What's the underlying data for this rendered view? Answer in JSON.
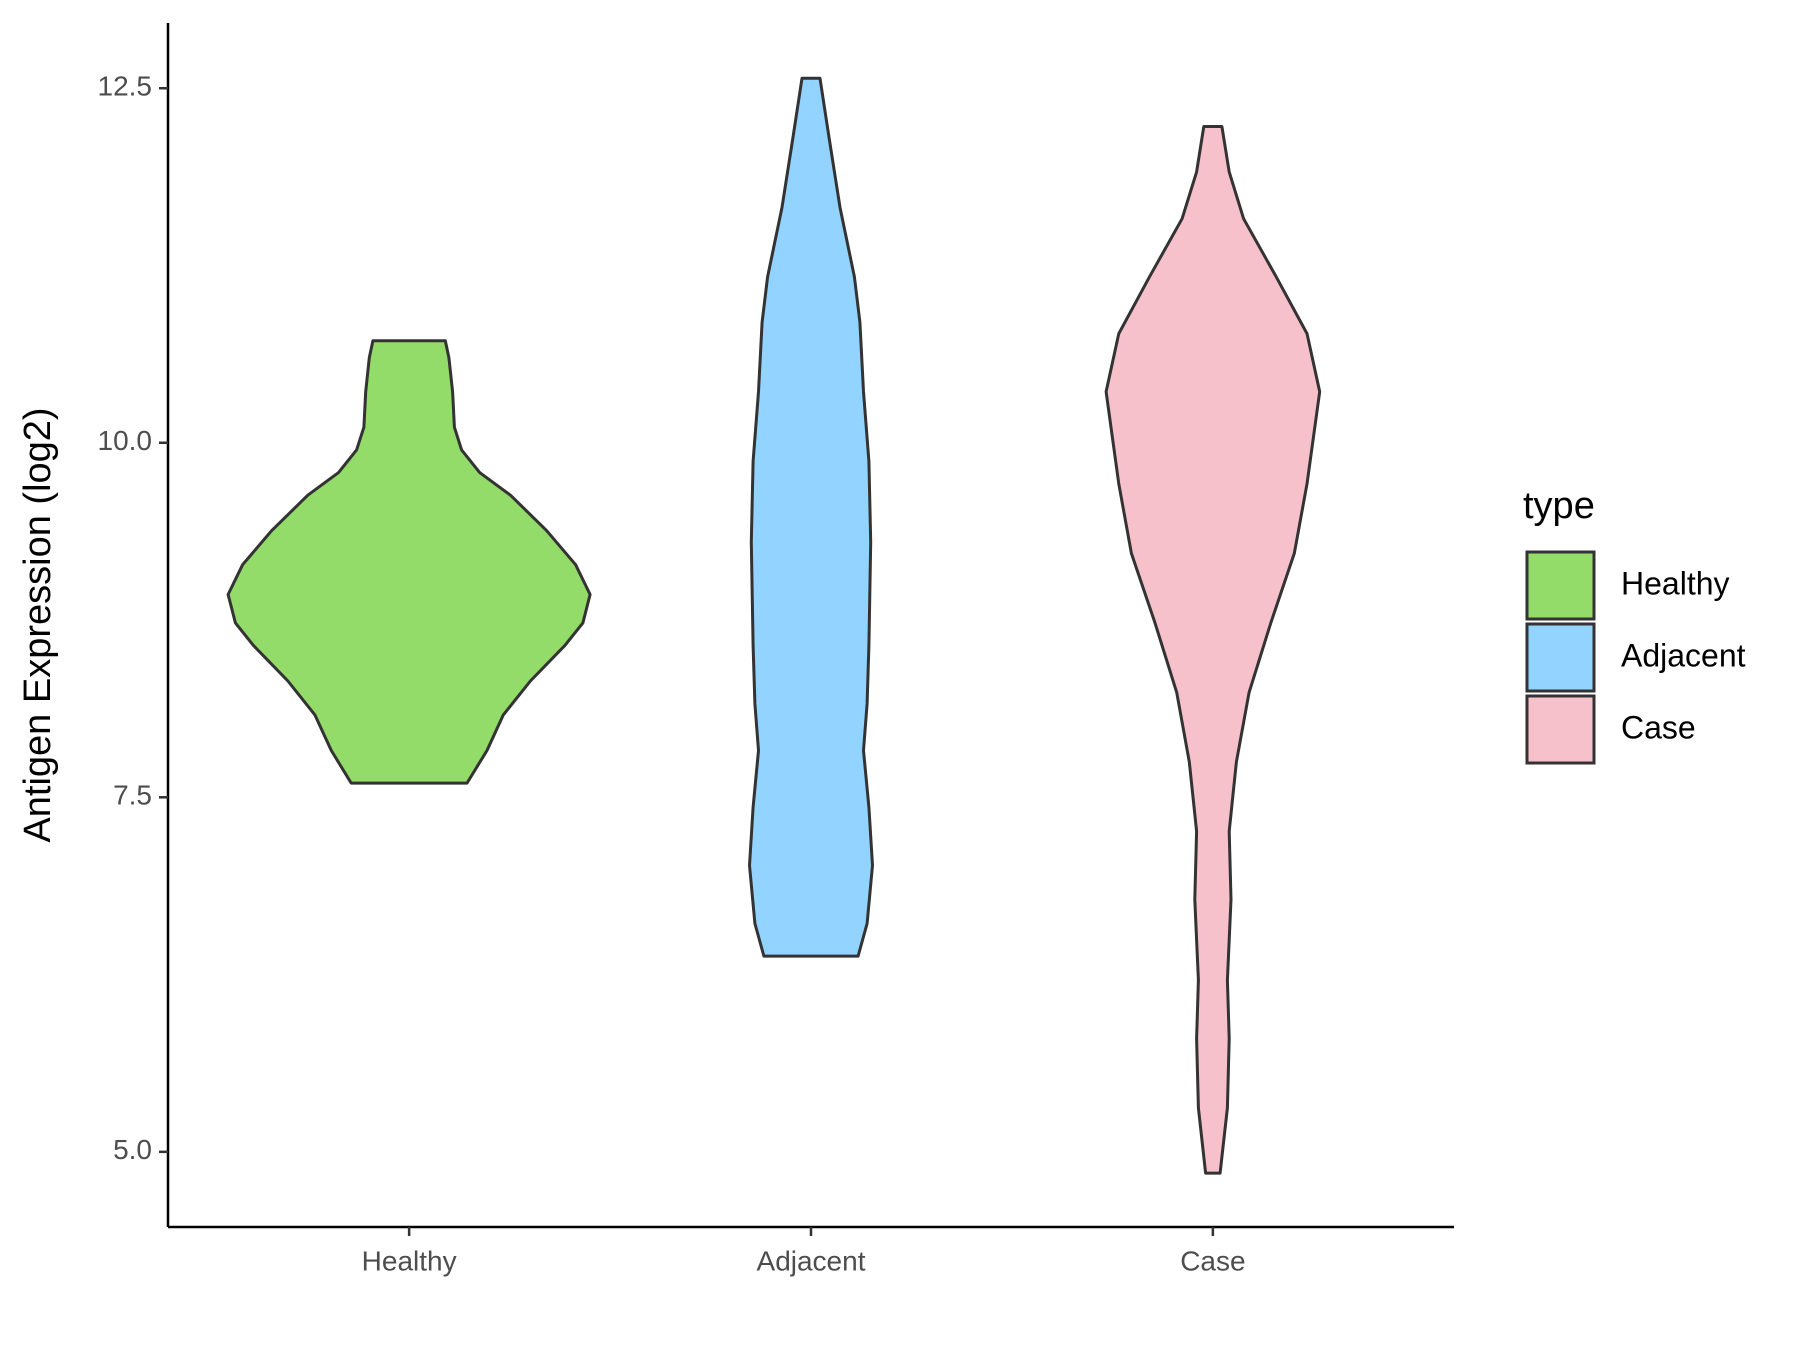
{
  "chart_data": {
    "type": "violin",
    "y_label": "Antigen Expression (log2)",
    "categories": [
      "Healthy",
      "Adjacent",
      "Case"
    ],
    "legend_title": "type",
    "legend": "right",
    "outline_color": "#333333",
    "series": [
      {
        "name": "Healthy",
        "color": "#93dc6a",
        "y": [
          7.6,
          7.83,
          8.08,
          8.32,
          8.57,
          8.73,
          8.93,
          9.14,
          9.38,
          9.63,
          9.79,
          9.95,
          10.11,
          10.36,
          10.6,
          10.72
        ],
        "density": [
          0.32,
          0.43,
          0.52,
          0.67,
          0.86,
          0.96,
          1.0,
          0.92,
          0.76,
          0.56,
          0.39,
          0.29,
          0.25,
          0.24,
          0.22,
          0.2
        ]
      },
      {
        "name": "Adjacent",
        "color": "#93d3ff",
        "y": [
          6.38,
          6.61,
          7.02,
          7.43,
          7.83,
          8.16,
          8.57,
          9.3,
          9.87,
          10.36,
          10.85,
          11.17,
          11.66,
          12.15,
          12.57
        ],
        "density": [
          0.26,
          0.31,
          0.34,
          0.32,
          0.29,
          0.31,
          0.32,
          0.33,
          0.32,
          0.29,
          0.27,
          0.24,
          0.16,
          0.1,
          0.05
        ]
      },
      {
        "name": "Case",
        "color": "#f7c1cc",
        "y": [
          4.85,
          5.31,
          5.8,
          6.21,
          6.78,
          7.26,
          7.75,
          8.24,
          8.73,
          9.22,
          9.71,
          10.36,
          10.77,
          11.17,
          11.58,
          11.91,
          12.23
        ],
        "density": [
          0.04,
          0.08,
          0.09,
          0.08,
          0.1,
          0.09,
          0.13,
          0.2,
          0.32,
          0.45,
          0.52,
          0.59,
          0.52,
          0.35,
          0.17,
          0.09,
          0.05
        ]
      }
    ],
    "ylim": [
      4.47,
      12.96
    ],
    "yticks": [
      {
        "value": 5,
        "label": "5.0"
      },
      7.5,
      {
        "value": 10,
        "label": "10.0"
      },
      12.5
    ]
  }
}
